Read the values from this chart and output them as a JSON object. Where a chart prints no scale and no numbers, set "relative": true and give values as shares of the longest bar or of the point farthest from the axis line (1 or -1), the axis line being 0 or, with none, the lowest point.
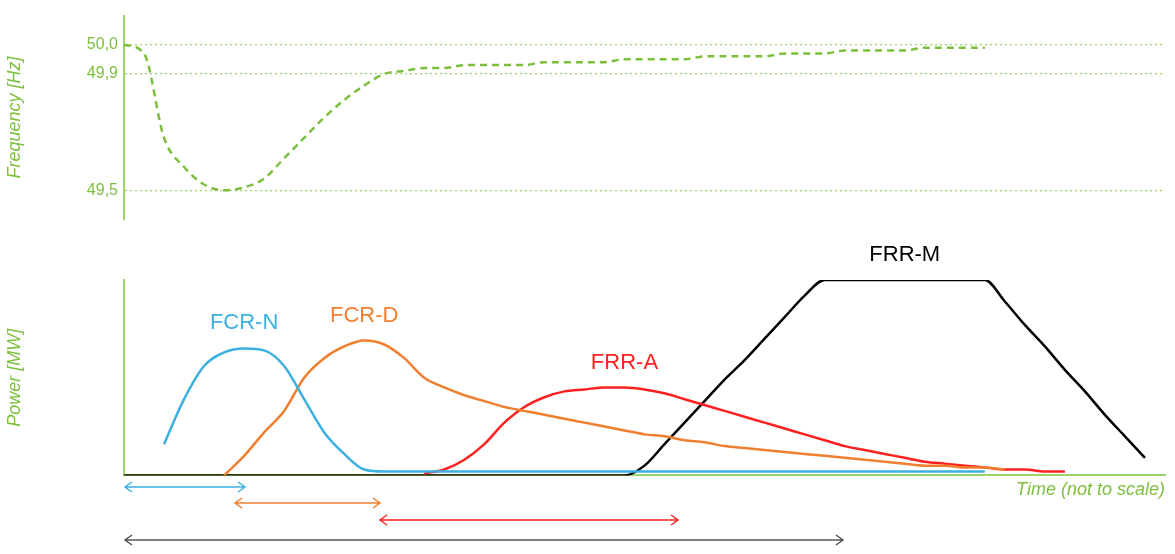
{
  "chart_data": [
    {
      "type": "line",
      "ylabel": "Frequency [Hz]",
      "categories": [
        null,
        null,
        null,
        null,
        null,
        null,
        null,
        null,
        null,
        null,
        null,
        null,
        null,
        null,
        null,
        null,
        null,
        null,
        null,
        null,
        null,
        null,
        null,
        null,
        null,
        null,
        null,
        null,
        null,
        null,
        null,
        null,
        null,
        null,
        null,
        null,
        null,
        null,
        null,
        null,
        null,
        null,
        null,
        null,
        null,
        null,
        null,
        null,
        null,
        null,
        null,
        null,
        null
      ],
      "ylim": [
        49.4,
        50.1
      ],
      "yticks": [
        {
          "value": 49.5,
          "label": "49,5"
        },
        {
          "value": 49.9,
          "label": "49,9"
        },
        {
          "value": 50.0,
          "label": "50,0"
        }
      ],
      "tick_labels": "y",
      "grid": "y",
      "legend": false,
      "marker": "none",
      "line_style": "dashed",
      "series": [
        {
          "color": "#7cbf3c",
          "values": [
            50.0,
            49.97,
            49.68,
            49.58,
            49.52,
            49.5,
            49.51,
            49.54,
            49.61,
            49.68,
            49.75,
            49.81,
            49.86,
            49.9,
            49.91,
            49.92,
            49.92,
            49.93,
            49.93,
            49.93,
            49.93,
            49.94,
            49.94,
            49.94,
            49.94,
            49.95,
            49.95,
            49.95,
            49.95,
            49.96,
            49.96,
            49.96,
            49.96,
            49.97,
            49.97,
            49.97,
            49.98,
            49.98,
            49.98,
            49.98,
            49.99,
            49.99,
            49.99,
            49.99,
            null,
            null,
            null,
            null,
            null,
            null,
            null,
            null,
            null
          ]
        }
      ]
    },
    {
      "type": "line",
      "relative": true,
      "ylabel": "Power [MW]",
      "xlabel": "Time (not to scale)",
      "categories": [
        null,
        null,
        null,
        null,
        null,
        null,
        null,
        null,
        null,
        null,
        null,
        null,
        null,
        null,
        null,
        null,
        null,
        null,
        null,
        null,
        null,
        null,
        null,
        null,
        null,
        null,
        null,
        null,
        null,
        null,
        null,
        null,
        null,
        null,
        null,
        null,
        null,
        null,
        null,
        null,
        null,
        null,
        null,
        null,
        null,
        null,
        null,
        null,
        null,
        null,
        null,
        null,
        null
      ],
      "tick_labels": false,
      "legend": false,
      "marker": "none",
      "line_style": "solid",
      "series": [
        {
          "name": "FCR-N",
          "color": "#3cb0e0",
          "values": [
            null,
            null,
            0.16,
            0.39,
            0.56,
            0.63,
            0.65,
            0.64,
            0.56,
            0.39,
            0.22,
            0.11,
            0.03,
            0.02,
            0.02,
            0.02,
            0.02,
            0.02,
            0.02,
            0.02,
            0.02,
            0.02,
            0.02,
            0.02,
            0.02,
            0.02,
            0.02,
            0.02,
            0.02,
            0.02,
            0.02,
            0.02,
            0.02,
            0.02,
            0.02,
            0.02,
            0.02,
            0.02,
            0.02,
            0.02,
            0.02,
            0.02,
            0.02,
            0.02,
            null,
            null,
            null,
            null,
            null,
            null,
            null,
            null,
            null
          ]
        },
        {
          "name": "FCR-D",
          "color": "#f07f30",
          "values": [
            null,
            null,
            null,
            null,
            null,
            0,
            0.1,
            0.22,
            0.33,
            0.5,
            0.6,
            0.66,
            0.69,
            0.67,
            0.6,
            0.5,
            0.45,
            0.41,
            0.38,
            0.35,
            0.33,
            0.31,
            0.29,
            0.27,
            0.25,
            0.23,
            0.21,
            0.2,
            0.18,
            0.17,
            0.15,
            0.14,
            0.13,
            0.12,
            0.11,
            0.1,
            0.09,
            0.08,
            0.07,
            0.06,
            0.05,
            0.05,
            0.04,
            0.04,
            0.03,
            null,
            null,
            null,
            null,
            null,
            null,
            null,
            null
          ]
        },
        {
          "name": "FRR-A",
          "color": "#ff2020",
          "values": [
            null,
            null,
            null,
            null,
            null,
            null,
            null,
            null,
            null,
            null,
            null,
            null,
            null,
            null,
            null,
            0.01,
            0.03,
            0.08,
            0.16,
            0.27,
            0.35,
            0.4,
            0.43,
            0.44,
            0.45,
            0.45,
            0.44,
            0.42,
            0.39,
            0.36,
            0.33,
            0.3,
            0.27,
            0.24,
            0.21,
            0.18,
            0.15,
            0.13,
            0.11,
            0.09,
            0.07,
            0.06,
            0.05,
            0.04,
            0.03,
            0.03,
            0.02,
            0.02,
            null,
            null,
            null,
            null,
            null
          ]
        },
        {
          "name": "FRR-M",
          "color": "#000000",
          "values": [
            0,
            0,
            0,
            0,
            0,
            0,
            0,
            0,
            0,
            0,
            0,
            0,
            0,
            0,
            0,
            0,
            0,
            0,
            0,
            0,
            0,
            0,
            0,
            0,
            0,
            0,
            0.05,
            0.16,
            0.27,
            0.38,
            0.49,
            0.59,
            0.7,
            0.81,
            0.92,
            1,
            1,
            1,
            1,
            1,
            1,
            1,
            1,
            1,
            0.89,
            0.77,
            0.66,
            0.54,
            0.43,
            0.31,
            0.2,
            0.09,
            null
          ]
        }
      ]
    }
  ]
}
